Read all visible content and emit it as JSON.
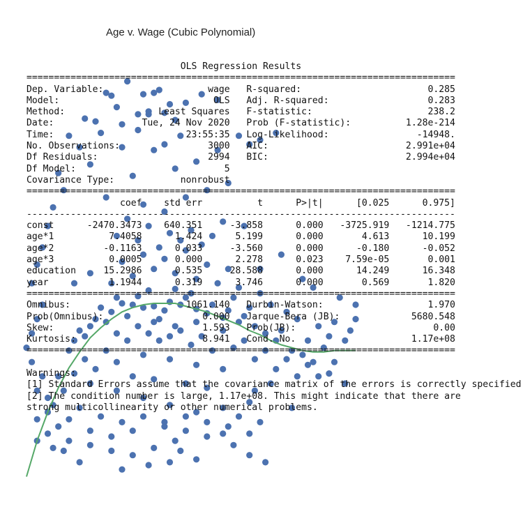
{
  "chart_data": {
    "type": "scatter",
    "title": "Age v. Wage (Cubic Polynomial)",
    "xlabel": "",
    "ylabel": "",
    "x_domain": [
      18,
      80
    ],
    "y_domain": [
      20,
      318
    ],
    "grid": false,
    "marker_color": "#4c72b0",
    "line_color": "#55a868",
    "n_points": 3000,
    "scatter_sample": [
      [
        40,
        148
      ],
      [
        42,
        149
      ],
      [
        38,
        150
      ],
      [
        45,
        152
      ],
      [
        36,
        151
      ],
      [
        44,
        146
      ],
      [
        47,
        150
      ],
      [
        34,
        145
      ],
      [
        50,
        147
      ],
      [
        39,
        156
      ],
      [
        41,
        160
      ],
      [
        43,
        140
      ],
      [
        37,
        142
      ],
      [
        48,
        155
      ],
      [
        52,
        144
      ],
      [
        55,
        141
      ],
      [
        58,
        138
      ],
      [
        33,
        138
      ],
      [
        30,
        135
      ],
      [
        29,
        128
      ],
      [
        31,
        140
      ],
      [
        27,
        125
      ],
      [
        26,
        118
      ],
      [
        28,
        132
      ],
      [
        32,
        148
      ],
      [
        35,
        155
      ],
      [
        46,
        161
      ],
      [
        49,
        158
      ],
      [
        53,
        150
      ],
      [
        56,
        146
      ],
      [
        59,
        142
      ],
      [
        61,
        135
      ],
      [
        63,
        130
      ],
      [
        65,
        125
      ],
      [
        68,
        118
      ],
      [
        70,
        115
      ],
      [
        72,
        110
      ],
      [
        35,
        110
      ],
      [
        40,
        115
      ],
      [
        45,
        112
      ],
      [
        50,
        108
      ],
      [
        55,
        105
      ],
      [
        38,
        100
      ],
      [
        42,
        98
      ],
      [
        48,
        95
      ],
      [
        52,
        92
      ],
      [
        30,
        95
      ],
      [
        25,
        90
      ],
      [
        22,
        85
      ],
      [
        24,
        100
      ],
      [
        35,
        90
      ],
      [
        40,
        85
      ],
      [
        45,
        80
      ],
      [
        50,
        75
      ],
      [
        55,
        78
      ],
      [
        60,
        82
      ],
      [
        28,
        78
      ],
      [
        32,
        72
      ],
      [
        36,
        68
      ],
      [
        44,
        65
      ],
      [
        48,
        62
      ],
      [
        52,
        58
      ],
      [
        20,
        70
      ],
      [
        22,
        60
      ],
      [
        26,
        55
      ],
      [
        30,
        52
      ],
      [
        34,
        48
      ],
      [
        38,
        45
      ],
      [
        42,
        50
      ],
      [
        46,
        55
      ],
      [
        34,
        165
      ],
      [
        38,
        170
      ],
      [
        42,
        175
      ],
      [
        46,
        172
      ],
      [
        50,
        168
      ],
      [
        54,
        165
      ],
      [
        58,
        162
      ],
      [
        36,
        180
      ],
      [
        40,
        185
      ],
      [
        44,
        182
      ],
      [
        48,
        188
      ],
      [
        52,
        178
      ],
      [
        56,
        175
      ],
      [
        30,
        172
      ],
      [
        27,
        165
      ],
      [
        62,
        158
      ],
      [
        64,
        150
      ],
      [
        67,
        145
      ],
      [
        69,
        140
      ],
      [
        73,
        135
      ],
      [
        75,
        128
      ],
      [
        78,
        125
      ],
      [
        79,
        132
      ],
      [
        76,
        138
      ],
      [
        74,
        120
      ],
      [
        71,
        125
      ],
      [
        66,
        132
      ],
      [
        60,
        148
      ],
      [
        57,
        155
      ],
      [
        43,
        190
      ],
      [
        47,
        195
      ],
      [
        51,
        192
      ],
      [
        39,
        195
      ],
      [
        35,
        198
      ],
      [
        45,
        200
      ],
      [
        41,
        205
      ],
      [
        49,
        202
      ],
      [
        53,
        198
      ],
      [
        37,
        210
      ],
      [
        55,
        208
      ],
      [
        59,
        205
      ],
      [
        44,
        215
      ],
      [
        40,
        220
      ],
      [
        48,
        225
      ],
      [
        52,
        230
      ],
      [
        56,
        235
      ],
      [
        33,
        225
      ],
      [
        38,
        240
      ],
      [
        46,
        245
      ],
      [
        50,
        250
      ],
      [
        42,
        258
      ],
      [
        36,
        260
      ],
      [
        44,
        262
      ],
      [
        54,
        258
      ],
      [
        60,
        262
      ],
      [
        47,
        268
      ],
      [
        39,
        272
      ],
      [
        32,
        270
      ],
      [
        58,
        268
      ],
      [
        62,
        265
      ],
      [
        65,
        270
      ],
      [
        41,
        285
      ],
      [
        35,
        288
      ],
      [
        45,
        290
      ],
      [
        29,
        280
      ],
      [
        33,
        298
      ],
      [
        43,
        300
      ],
      [
        37,
        306
      ],
      [
        51,
        297
      ],
      [
        54,
        293
      ],
      [
        48,
        291
      ],
      [
        34,
        296
      ],
      [
        42,
        298
      ],
      [
        40,
        297
      ],
      [
        39,
        283
      ],
      [
        44,
        284
      ],
      [
        41,
        283
      ],
      [
        31,
        278
      ],
      [
        36,
        276
      ],
      [
        46,
        279
      ],
      [
        26,
        268
      ],
      [
        28,
        260
      ],
      [
        30,
        248
      ],
      [
        24,
        242
      ],
      [
        25,
        230
      ],
      [
        23,
        218
      ],
      [
        22,
        205
      ],
      [
        21,
        190
      ],
      [
        20,
        178
      ],
      [
        19,
        165
      ],
      [
        21,
        150
      ],
      [
        20,
        140
      ],
      [
        19,
        130
      ],
      [
        18,
        120
      ],
      [
        19,
        110
      ],
      [
        21,
        100
      ],
      [
        20,
        90
      ],
      [
        23,
        80
      ],
      [
        22,
        75
      ],
      [
        24,
        65
      ],
      [
        26,
        70
      ],
      [
        20,
        55
      ],
      [
        62,
        175
      ],
      [
        66,
        185
      ],
      [
        70,
        168
      ],
      [
        72,
        162
      ],
      [
        77,
        155
      ],
      [
        80,
        140
      ],
      [
        80,
        150
      ],
      [
        76,
        110
      ],
      [
        73,
        100
      ],
      [
        64,
        95
      ],
      [
        61,
        90
      ],
      [
        58,
        72
      ],
      [
        62,
        68
      ],
      [
        68,
        78
      ],
      [
        55,
        60
      ],
      [
        45,
        40
      ],
      [
        41,
        38
      ],
      [
        60,
        45
      ],
      [
        63,
        40
      ],
      [
        28,
        40
      ],
      [
        36,
        35
      ],
      [
        50,
        42
      ],
      [
        47,
        48
      ],
      [
        57,
        52
      ],
      [
        30,
        62
      ],
      [
        34,
        58
      ],
      [
        38,
        62
      ],
      [
        25,
        48
      ],
      [
        23,
        50
      ],
      [
        40,
        72
      ],
      [
        44,
        68
      ],
      [
        48,
        72
      ],
      [
        52,
        68
      ],
      [
        56,
        65
      ],
      [
        60,
        60
      ],
      [
        37,
        125
      ],
      [
        41,
        130
      ],
      [
        45,
        128
      ],
      [
        49,
        122
      ],
      [
        53,
        118
      ],
      [
        57,
        120
      ],
      [
        61,
        112
      ],
      [
        65,
        105
      ],
      [
        69,
        100
      ],
      [
        29,
        112
      ],
      [
        33,
        118
      ],
      [
        27,
        102
      ],
      [
        31,
        105
      ],
      [
        35,
        130
      ],
      [
        39,
        135
      ],
      [
        43,
        125
      ],
      [
        47,
        132
      ],
      [
        51,
        128
      ],
      [
        55,
        132
      ],
      [
        59,
        125
      ],
      [
        63,
        118
      ],
      [
        67,
        112
      ],
      [
        71,
        108
      ],
      [
        75,
        102
      ],
      [
        78,
        95
      ],
      [
        50,
        138
      ],
      [
        46,
        135
      ],
      [
        42,
        138
      ]
    ],
    "fit_curve": [
      [
        18,
        30
      ],
      [
        20,
        55
      ],
      [
        22,
        75
      ],
      [
        24,
        92
      ],
      [
        26,
        106
      ],
      [
        28,
        117
      ],
      [
        30,
        127
      ],
      [
        32,
        134
      ],
      [
        34,
        140
      ],
      [
        36,
        145
      ],
      [
        38,
        148
      ],
      [
        40,
        150
      ],
      [
        42,
        151
      ],
      [
        44,
        151
      ],
      [
        46,
        151
      ],
      [
        48,
        149
      ],
      [
        50,
        147
      ],
      [
        52,
        145
      ],
      [
        54,
        142
      ],
      [
        56,
        139
      ],
      [
        58,
        136
      ],
      [
        60,
        132
      ],
      [
        62,
        129
      ],
      [
        64,
        125
      ],
      [
        66,
        122
      ],
      [
        68,
        120
      ],
      [
        70,
        118
      ],
      [
        72,
        117
      ],
      [
        74,
        117
      ],
      [
        76,
        118
      ],
      [
        78,
        118
      ],
      [
        80,
        118
      ]
    ]
  },
  "summary_text": "                            OLS Regression Results                            \n==============================================================================\nDep. Variable:                   wage   R-squared:                       0.285\nModel:                            OLS   Adj. R-squared:                  0.283\nMethod:                 Least Squares   F-statistic:                     238.2\nDate:                Tue, 24 Nov 2020   Prob (F-statistic):          1.28e-214\nTime:                        23:55:35   Log-Likelihood:                -14948.\nNo. Observations:                3000   AIC:                         2.991e+04\nDf Residuals:                    2994   BIC:                         2.994e+04\nDf Model:                           5                                         \nCovariance Type:            nonrobust                                         \n==============================================================================\n                 coef    std err          t      P>|t|      [0.025      0.975]\n------------------------------------------------------------------------------\nconst      -2470.3473    640.351     -3.858      0.000   -3725.919   -1214.775\nage*1          7.4058      1.424      5.199      0.000       4.613      10.199\nage*2         -0.1163      0.033     -3.560      0.000      -0.180      -0.052\nage*3          0.0005      0.000      2.278      0.023    7.59e-05       0.001\neducation     15.2986      0.535     28.588      0.000      14.249      16.348\nyear           1.1944      0.319      3.746      0.000       0.569       1.820\n==============================================================================\nOmnibus:                     1061.140   Durbin-Watson:                   1.970\nProb(Omnibus):                  0.000   Jarque-Bera (JB):             5680.548\nSkew:                           1.593   Prob(JB):                         0.00\nKurtosis:                       8.941   Cond. No.                     1.17e+08\n==============================================================================\n\nWarnings:\n[1] Standard Errors assume that the covariance matrix of the errors is correctly specified.\n[2] The condition number is large, 1.17e+08. This might indicate that there are\nstrong multicollinearity or other numerical problems."
}
